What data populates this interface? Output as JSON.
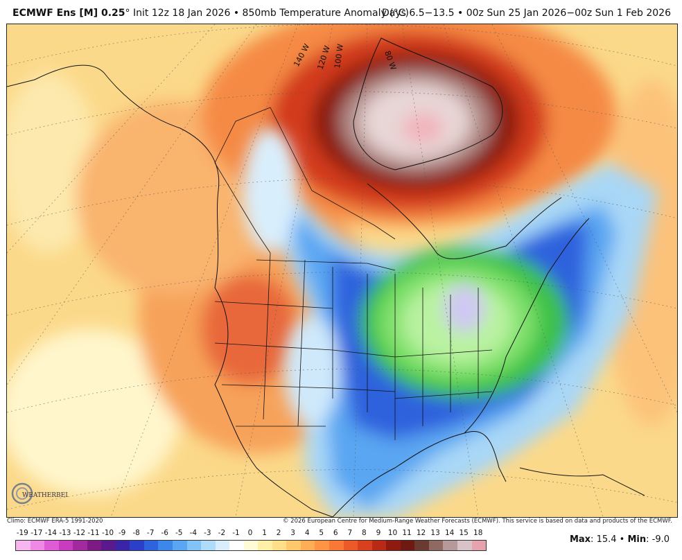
{
  "header": {
    "model": "ECMWF Ens [M] 0.25",
    "degree": "°",
    "init": "Init 12z 18 Jan 2026",
    "bullet": "•",
    "field": "850mb Temperature Anomaly (°C)",
    "valid": "Days 6.5−13.5 • 00z Sun 25 Jan 2026−00z Sun 1 Feb 2026"
  },
  "map": {
    "region": "North America",
    "meridian_labels": [
      "140 W",
      "120 W",
      "100 W",
      "80 W"
    ],
    "logo_text": "WEATHERBELL"
  },
  "footer": {
    "climo": "Climo: ECMWF ERA-5 1991-2020",
    "copyright": "© 2026 European Centre for Medium-Range Weather Forecasts (ECMWF). This service is based on data and products of the ECMWF."
  },
  "legend": {
    "labels": [
      "-19",
      "-17",
      "-14",
      "-13",
      "-12",
      "-11",
      "-10",
      "-9",
      "-8",
      "-7",
      "-6",
      "-5",
      "-4",
      "-3",
      "-2",
      "-1",
      "0",
      "1",
      "2",
      "3",
      "4",
      "5",
      "6",
      "7",
      "8",
      "9",
      "10",
      "11",
      "12",
      "13",
      "14",
      "15",
      "18"
    ],
    "colors": [
      "#f7b6f0",
      "#f089e6",
      "#e05cd6",
      "#c93bbf",
      "#a3299e",
      "#7e1a84",
      "#5a1a8e",
      "#3a24a8",
      "#2c3fc9",
      "#2f62dd",
      "#3d86ea",
      "#5aa6f2",
      "#82c3f7",
      "#aedcfa",
      "#d9eefc",
      "#ffffff",
      "#fffbd6",
      "#fff0a8",
      "#ffdf87",
      "#ffc86b",
      "#ffae55",
      "#ff9444",
      "#f97836",
      "#ec5a29",
      "#d8401e",
      "#b82a15",
      "#8f1b10",
      "#6e1a12",
      "#6b3a30",
      "#8e6a62",
      "#b5999b",
      "#d8c4c8",
      "#e6a3ad"
    ],
    "max_label": "Max",
    "max_value": "15.4",
    "min_label": "Min",
    "min_value": "-9.0"
  }
}
